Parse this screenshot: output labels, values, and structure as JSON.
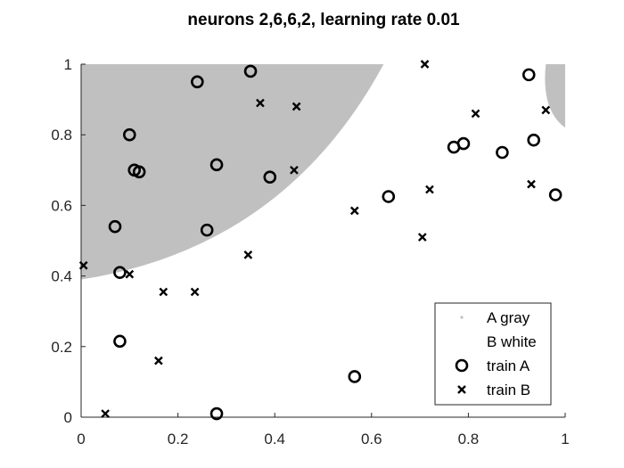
{
  "chart_data": {
    "type": "scatter",
    "title": "neurons 2,6,6,2, learning rate 0.01",
    "xlabel": "",
    "ylabel": "",
    "xlim": [
      0,
      1
    ],
    "ylim": [
      0,
      1
    ],
    "xticks": [
      "0",
      "0.2",
      "0.4",
      "0.6",
      "0.8",
      "1"
    ],
    "yticks": [
      "0",
      "0.2",
      "0.4",
      "0.6",
      "0.8",
      "1"
    ],
    "grid": false,
    "legend_position": "bottom-right",
    "colors": {
      "region_a": "#c0c0c0",
      "region_b": "#ffffff",
      "markers": "#000000"
    },
    "legend": [
      {
        "label": "A gray",
        "marker": "dot"
      },
      {
        "label": "B white",
        "marker": "none"
      },
      {
        "label": "train A",
        "marker": "circle"
      },
      {
        "label": "train B",
        "marker": "x"
      }
    ],
    "series": [
      {
        "name": "train A",
        "marker": "circle",
        "points": [
          [
            0.24,
            0.95
          ],
          [
            0.35,
            0.98
          ],
          [
            0.1,
            0.8
          ],
          [
            0.11,
            0.7
          ],
          [
            0.12,
            0.695
          ],
          [
            0.28,
            0.715
          ],
          [
            0.39,
            0.68
          ],
          [
            0.07,
            0.54
          ],
          [
            0.26,
            0.53
          ],
          [
            0.08,
            0.41
          ],
          [
            0.08,
            0.215
          ],
          [
            0.28,
            0.01
          ],
          [
            0.565,
            0.115
          ],
          [
            0.635,
            0.625
          ],
          [
            0.77,
            0.765
          ],
          [
            0.79,
            0.775
          ],
          [
            0.87,
            0.75
          ],
          [
            0.925,
            0.97
          ],
          [
            0.935,
            0.785
          ],
          [
            0.98,
            0.63
          ]
        ]
      },
      {
        "name": "train B",
        "marker": "x",
        "points": [
          [
            0.005,
            0.43
          ],
          [
            0.05,
            0.01
          ],
          [
            0.1,
            0.405
          ],
          [
            0.17,
            0.355
          ],
          [
            0.235,
            0.355
          ],
          [
            0.16,
            0.16
          ],
          [
            0.345,
            0.46
          ],
          [
            0.37,
            0.89
          ],
          [
            0.445,
            0.88
          ],
          [
            0.44,
            0.7
          ],
          [
            0.565,
            0.585
          ],
          [
            0.705,
            0.51
          ],
          [
            0.71,
            1.0
          ],
          [
            0.72,
            0.645
          ],
          [
            0.815,
            0.86
          ],
          [
            0.93,
            0.66
          ],
          [
            0.96,
            0.87
          ]
        ]
      }
    ]
  }
}
